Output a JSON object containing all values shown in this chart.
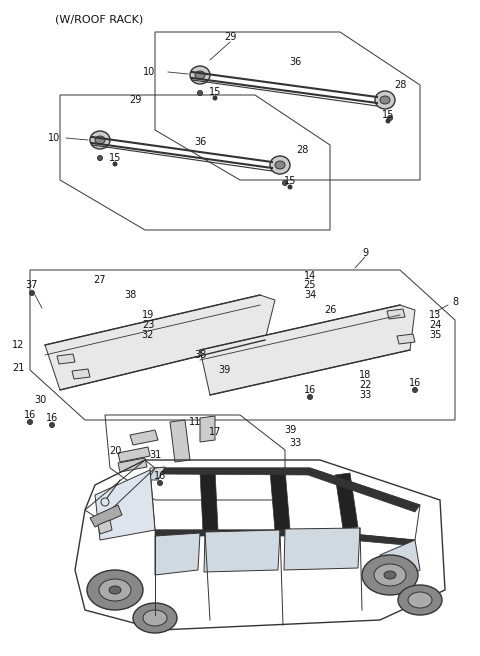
{
  "title": "(W/ROOF RACK)",
  "bg_color": "#ffffff",
  "line_color": "#333333",
  "label_color": "#111111",
  "fig_width": 4.8,
  "fig_height": 6.56,
  "dpi": 100
}
